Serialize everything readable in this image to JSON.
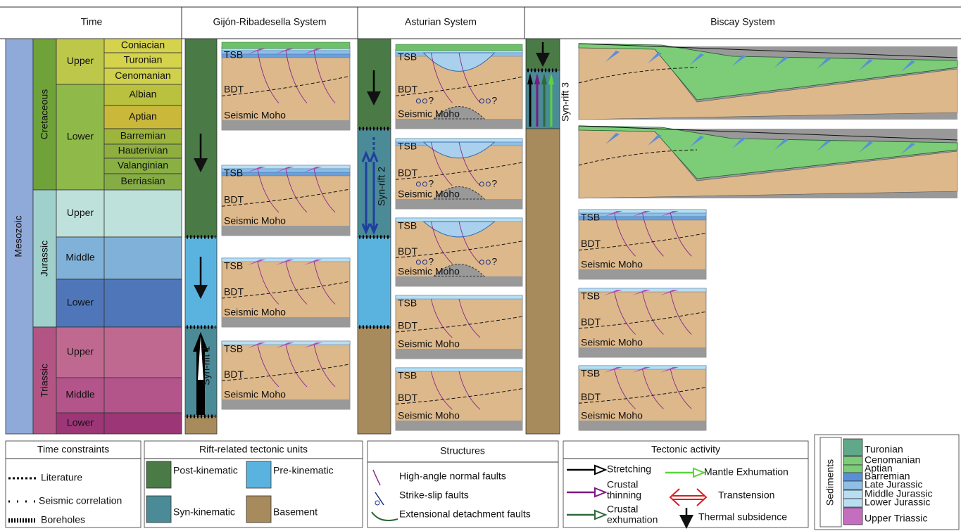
{
  "header": {
    "time": "Time",
    "systems": [
      "Gijón-Ribadesella System",
      "Asturian System",
      "Biscay System"
    ]
  },
  "timescale": {
    "era": "Mesozoic",
    "periods": [
      "Cretaceous",
      "Jurassic",
      "Triassic"
    ],
    "epochs": [
      "Upper",
      "Lower",
      "Upper",
      "Middle",
      "Lower",
      "Upper",
      "Middle",
      "Lower"
    ],
    "stages": [
      "Coniacian",
      "Turonian",
      "Cenomanian",
      "Albian",
      "Aptian",
      "Barremian",
      "Hauterivian",
      "Valanginian",
      "Berriasian"
    ]
  },
  "panel_labels": {
    "tsb": "TSB",
    "bdt": "BDT",
    "moho": "Seismic Moho",
    "question": "?"
  },
  "syn_rift": [
    "Syn-rift 1",
    "Syn-rift 2",
    "Syn-rift 3"
  ],
  "legend": {
    "time_constraints": {
      "title": "Time constraints",
      "items": [
        "Literature",
        "Seismic correlation",
        "Boreholes"
      ]
    },
    "units": {
      "title": "Rift-related tectonic units",
      "items": [
        "Post-kinematic",
        "Pre-kinematic",
        "Syn-kinematic",
        "Basement"
      ]
    },
    "structures": {
      "title": "Structures",
      "items": [
        "High-angle normal faults",
        "Strike-slip faults",
        "Extensional detachment faults"
      ]
    },
    "tectonic_activity": {
      "title": "Tectonic activity",
      "items": [
        [
          "Stretching"
        ],
        [
          "Crustal",
          "thinning"
        ],
        [
          "Crustal",
          "exhumation"
        ],
        [
          "Mantle Exhumation"
        ],
        [
          "Transtension"
        ],
        [
          "Thermal subsidence"
        ]
      ]
    },
    "sediments": {
      "title": "Sediments",
      "items": [
        [
          "Turonian"
        ],
        [
          "Cenomanian",
          "Aptian"
        ],
        [
          "Barremian",
          "Late Jurassic"
        ],
        [
          "Middle Jurassic",
          "Lower Jurassic"
        ],
        [
          "Upper Triassic"
        ]
      ]
    }
  }
}
